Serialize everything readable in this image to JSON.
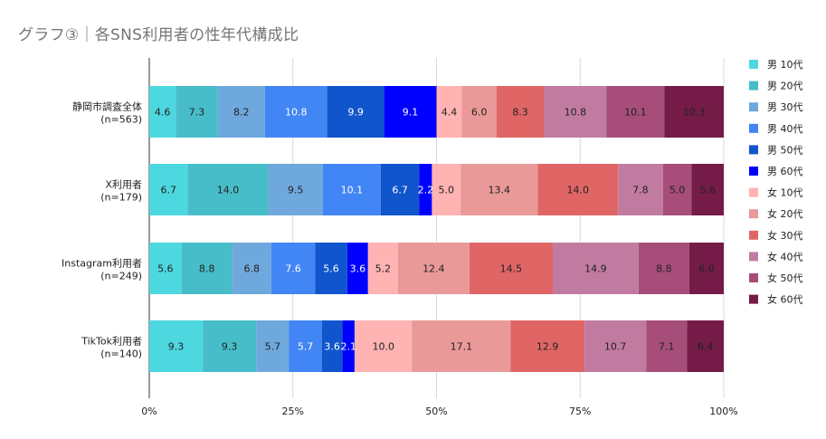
{
  "chart_data": {
    "type": "bar",
    "orientation": "horizontal",
    "stacked": "percent",
    "title": "グラフ③｜各SNS利用者の性年代構成比",
    "categories": [
      [
        "静岡市調査全体",
        "(n=563)"
      ],
      [
        "X利用者",
        "(n=179)"
      ],
      [
        "Instagram利用者",
        "(n=249)"
      ],
      [
        "TikTok利用者",
        "(n=140)"
      ]
    ],
    "x_ticks": [
      "0%",
      "25%",
      "50%",
      "75%",
      "100%"
    ],
    "xlim": [
      0,
      100
    ],
    "legend_position": "right",
    "grid": "vertical",
    "series": [
      {
        "name": "男 10代",
        "color": "#4dd8e0",
        "values": [
          4.6,
          6.7,
          5.6,
          9.3
        ]
      },
      {
        "name": "男 20代",
        "color": "#47bdc9",
        "values": [
          7.3,
          14.0,
          8.8,
          9.3
        ]
      },
      {
        "name": "男 30代",
        "color": "#6fa8dc",
        "values": [
          8.2,
          9.5,
          6.8,
          5.7
        ]
      },
      {
        "name": "男 40代",
        "color": "#4285f4",
        "values": [
          10.8,
          10.1,
          7.6,
          5.7
        ]
      },
      {
        "name": "男 50代",
        "color": "#1155cc",
        "values": [
          9.9,
          6.7,
          5.6,
          3.6
        ]
      },
      {
        "name": "男 60代",
        "color": "#0000ff",
        "values": [
          9.1,
          2.2,
          3.6,
          2.1
        ]
      },
      {
        "name": "女 10代",
        "color": "#ffb3b3",
        "values": [
          4.4,
          5.0,
          5.2,
          10.0
        ]
      },
      {
        "name": "女 20代",
        "color": "#ea9999",
        "values": [
          6.0,
          13.4,
          12.4,
          17.1
        ]
      },
      {
        "name": "女 30代",
        "color": "#e06666",
        "values": [
          8.3,
          14.0,
          14.5,
          12.9
        ]
      },
      {
        "name": "女 40代",
        "color": "#c27ba0",
        "values": [
          10.8,
          7.8,
          14.9,
          10.7
        ]
      },
      {
        "name": "女 50代",
        "color": "#a64d79",
        "values": [
          10.1,
          5.0,
          8.8,
          7.1
        ]
      },
      {
        "name": "女 60代",
        "color": "#741b47",
        "values": [
          10.3,
          5.6,
          6.0,
          6.4
        ]
      }
    ]
  }
}
